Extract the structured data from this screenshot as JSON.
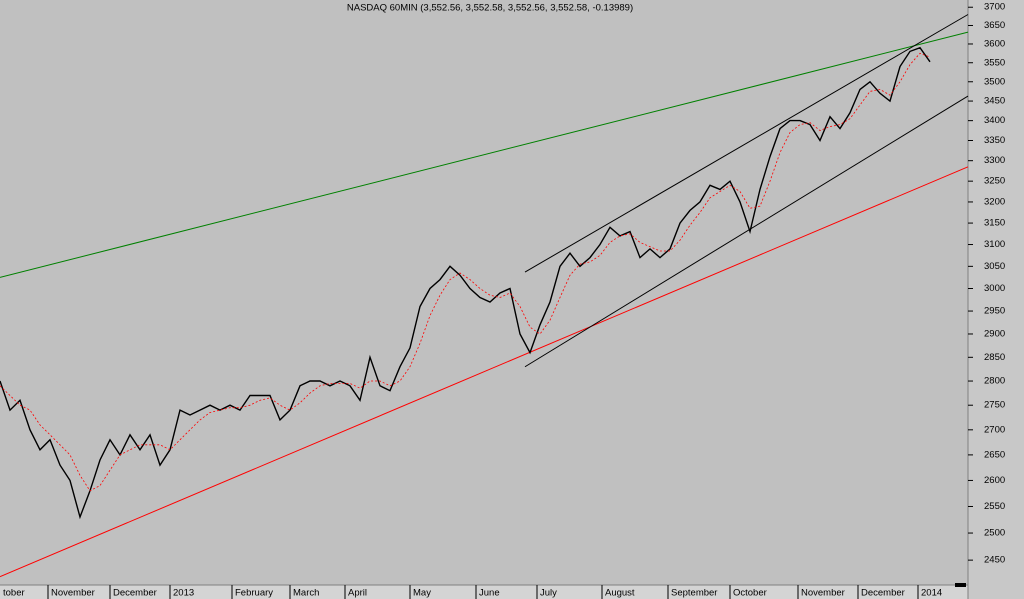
{
  "chart_data": {
    "type": "line",
    "title": "NASDAQ 60MIN (3,552.56, 3,552.58, 3,552.56, 3,552.58, -0.13989)",
    "log_scale": true,
    "x": [
      0,
      1,
      2,
      3,
      4,
      5,
      6,
      7,
      8,
      9,
      10,
      11,
      12,
      13,
      14,
      15,
      16,
      17,
      18,
      19,
      20,
      21,
      22,
      23,
      24,
      25,
      26,
      27,
      28,
      29,
      30,
      31,
      32,
      33,
      34,
      35,
      36,
      37,
      38,
      39,
      40,
      41,
      42,
      43,
      44,
      45,
      46,
      47,
      48,
      49,
      50,
      51,
      52,
      53,
      54,
      55,
      56,
      57,
      58,
      59,
      60,
      61,
      62,
      63,
      64,
      65,
      66,
      67,
      68,
      69,
      70,
      71,
      72,
      73,
      74,
      75,
      76,
      77,
      78,
      79,
      80,
      81,
      82,
      83,
      84,
      85,
      86,
      87,
      88,
      89,
      90,
      91,
      92,
      93
    ],
    "series": [
      {
        "color": "#000000",
        "values": [
          2800,
          2740,
          2760,
          2700,
          2660,
          2680,
          2630,
          2600,
          2530,
          2580,
          2640,
          2680,
          2650,
          2690,
          2660,
          2690,
          2630,
          2660,
          2740,
          2730,
          2740,
          2750,
          2740,
          2750,
          2740,
          2770,
          2770,
          2770,
          2720,
          2740,
          2790,
          2800,
          2800,
          2790,
          2800,
          2790,
          2760,
          2850,
          2790,
          2780,
          2830,
          2870,
          2960,
          3000,
          3020,
          3050,
          3030,
          3000,
          2980,
          2970,
          2990,
          3000,
          2900,
          2860,
          2920,
          2970,
          3050,
          3080,
          3050,
          3070,
          3100,
          3140,
          3120,
          3130,
          3070,
          3090,
          3070,
          3090,
          3150,
          3180,
          3200,
          3240,
          3230,
          3250,
          3200,
          3130,
          3230,
          3310,
          3380,
          3400,
          3400,
          3390,
          3350,
          3410,
          3380,
          3420,
          3480,
          3500,
          3470,
          3450,
          3540,
          3580,
          3590,
          3552.56
        ]
      },
      {
        "color": "#ff0000",
        "dashed": true,
        "values": [
          2790,
          2770,
          2750,
          2740,
          2710,
          2690,
          2670,
          2650,
          2610,
          2580,
          2590,
          2620,
          2650,
          2660,
          2670,
          2670,
          2670,
          2660,
          2680,
          2700,
          2720,
          2735,
          2740,
          2745,
          2745,
          2750,
          2760,
          2765,
          2750,
          2740,
          2755,
          2775,
          2790,
          2795,
          2795,
          2795,
          2785,
          2800,
          2800,
          2790,
          2800,
          2830,
          2880,
          2940,
          2985,
          3020,
          3035,
          3020,
          3000,
          2985,
          2980,
          2990,
          2960,
          2915,
          2900,
          2930,
          2980,
          3030,
          3055,
          3060,
          3075,
          3105,
          3120,
          3125,
          3105,
          3095,
          3085,
          3085,
          3110,
          3145,
          3175,
          3210,
          3225,
          3240,
          3225,
          3185,
          3190,
          3250,
          3320,
          3370,
          3390,
          3395,
          3375,
          3385,
          3390,
          3405,
          3440,
          3475,
          3480,
          3465,
          3500,
          3545,
          3575,
          3565
        ]
      }
    ],
    "trendlines": [
      {
        "color": "#008000",
        "x": [
          0,
          96.8
        ],
        "values": [
          3025,
          3632
        ]
      },
      {
        "color": "#ff0000",
        "x": [
          0,
          96.8
        ],
        "values": [
          2420,
          3285
        ]
      },
      {
        "color": "#000000",
        "x": [
          52.5,
          96.8
        ],
        "values": [
          3037,
          3680
        ]
      },
      {
        "color": "#000000",
        "x": [
          52.5,
          96.8
        ],
        "values": [
          2830,
          3463
        ]
      }
    ],
    "xlim": [
      0,
      96.8
    ],
    "xticks": [
      {
        "value": 0,
        "label": "tober"
      },
      {
        "value": 4.8,
        "label": "November"
      },
      {
        "value": 11,
        "label": "December"
      },
      {
        "value": 17,
        "label": "2013"
      },
      {
        "value": 23.2,
        "label": "February"
      },
      {
        "value": 29,
        "label": "March"
      },
      {
        "value": 34.5,
        "label": "April"
      },
      {
        "value": 41,
        "label": "May"
      },
      {
        "value": 47.6,
        "label": "June"
      },
      {
        "value": 53.7,
        "label": "July"
      },
      {
        "value": 60.2,
        "label": "August"
      },
      {
        "value": 66.8,
        "label": "September"
      },
      {
        "value": 73,
        "label": "October"
      },
      {
        "value": 79.8,
        "label": "November"
      },
      {
        "value": 85.8,
        "label": "December"
      },
      {
        "value": 91.8,
        "label": "2014"
      }
    ],
    "ylim": [
      2405,
      3720
    ],
    "yticks": [
      2450,
      2500,
      2550,
      2600,
      2650,
      2700,
      2750,
      2800,
      2850,
      2900,
      2950,
      3000,
      3050,
      3100,
      3150,
      3200,
      3250,
      3300,
      3350,
      3400,
      3450,
      3500,
      3550,
      3600,
      3650,
      3700
    ]
  }
}
